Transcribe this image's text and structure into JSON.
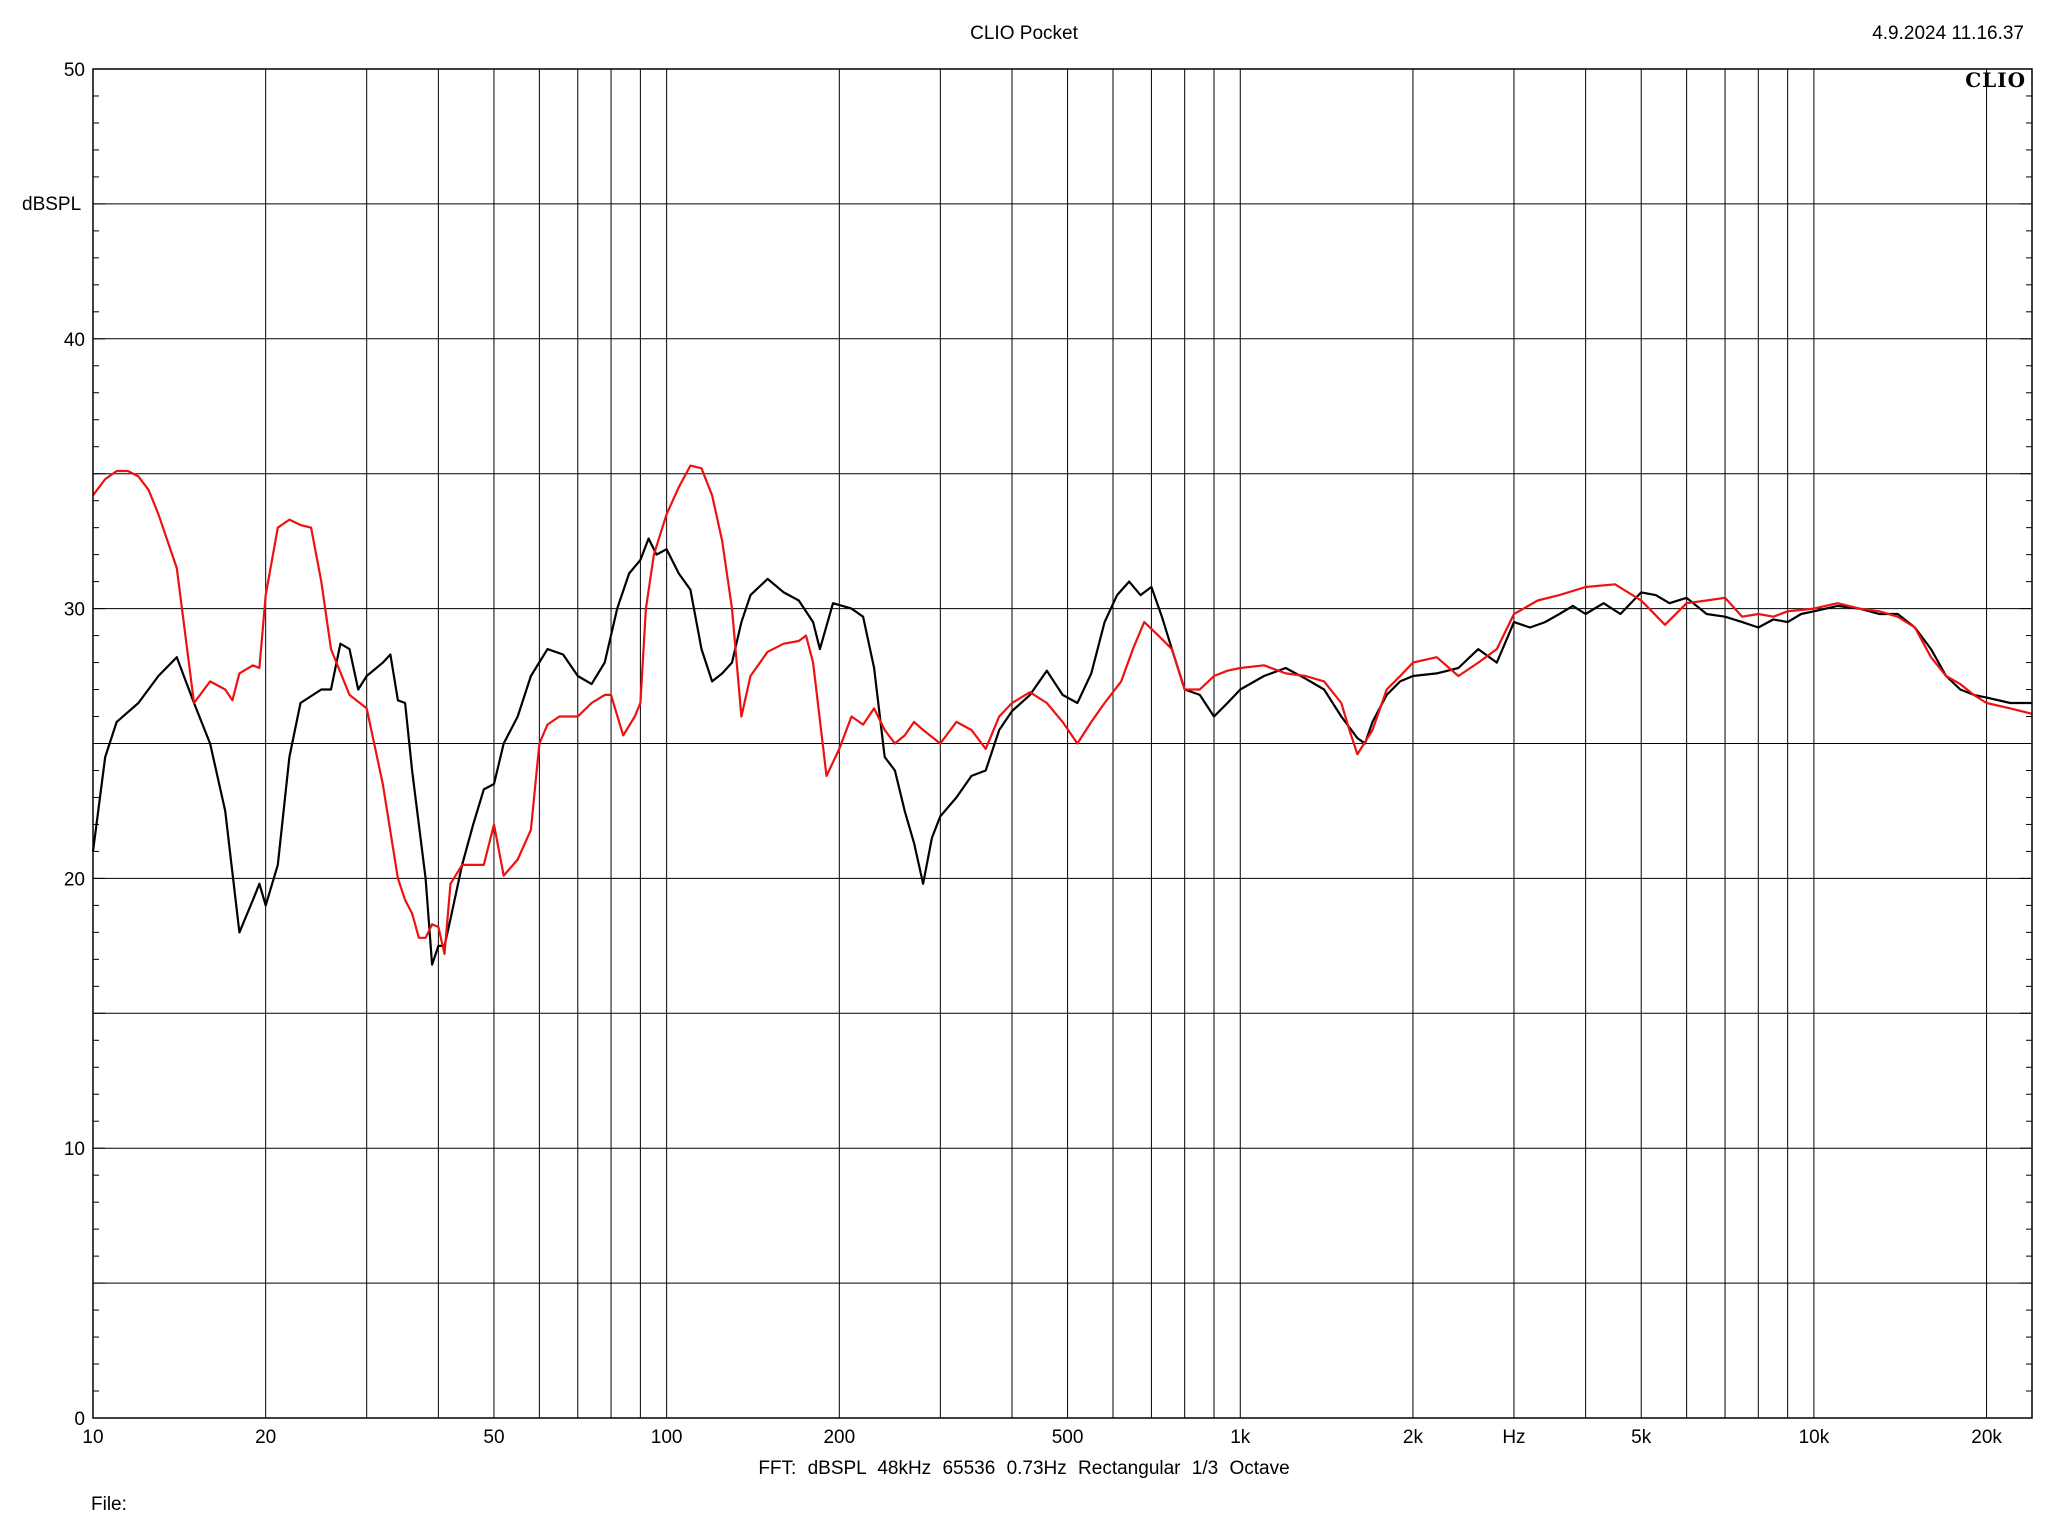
{
  "header": {
    "title": "CLIO Pocket",
    "timestamp": "4.9.2024 11.16.37",
    "brand": "CLIO"
  },
  "footer": {
    "settings": "FFT:  dBSPL  48kHz   65536  0.73Hz  Rectangular  1/3 Octave",
    "file_label": "File:"
  },
  "colors": {
    "series_black": "#000000",
    "series_red": "#ee1111",
    "grid": "#000000"
  },
  "chart_data": {
    "type": "line",
    "title": "CLIO Pocket",
    "ylabel": "dBSPL",
    "xunit_label": "Hz",
    "xscale": "log",
    "xlim": [
      10,
      24000
    ],
    "ylim": [
      0,
      50
    ],
    "grid": true,
    "x_ticks": [
      {
        "value": 10,
        "label": "10"
      },
      {
        "value": 20,
        "label": "20"
      },
      {
        "value": 50,
        "label": "50"
      },
      {
        "value": 100,
        "label": "100"
      },
      {
        "value": 200,
        "label": "200"
      },
      {
        "value": 500,
        "label": "500"
      },
      {
        "value": 1000,
        "label": "1k"
      },
      {
        "value": 2000,
        "label": "2k"
      },
      {
        "value": 5000,
        "label": "5k"
      },
      {
        "value": 10000,
        "label": "10k"
      },
      {
        "value": 20000,
        "label": "20k"
      }
    ],
    "y_ticks": [
      {
        "value": 0,
        "label": "0"
      },
      {
        "value": 10,
        "label": "10"
      },
      {
        "value": 20,
        "label": "20"
      },
      {
        "value": 30,
        "label": "30"
      },
      {
        "value": 40,
        "label": "40"
      },
      {
        "value": 50,
        "label": "50"
      }
    ],
    "series": [
      {
        "color": "#000000",
        "points": [
          [
            10,
            21
          ],
          [
            10.5,
            24.5
          ],
          [
            11,
            25.8
          ],
          [
            12,
            26.5
          ],
          [
            13,
            27.5
          ],
          [
            14,
            28.2
          ],
          [
            15,
            26.5
          ],
          [
            16,
            25
          ],
          [
            17,
            22.5
          ],
          [
            18,
            18
          ],
          [
            19,
            19.2
          ],
          [
            19.5,
            19.8
          ],
          [
            20,
            19
          ],
          [
            21,
            20.5
          ],
          [
            22,
            24.5
          ],
          [
            23,
            26.5
          ],
          [
            25,
            27
          ],
          [
            26,
            27
          ],
          [
            27,
            28.7
          ],
          [
            28,
            28.5
          ],
          [
            29,
            27
          ],
          [
            30,
            27.5
          ],
          [
            32,
            28
          ],
          [
            33,
            28.3
          ],
          [
            34,
            26.6
          ],
          [
            35,
            26.5
          ],
          [
            36,
            24
          ],
          [
            38,
            20
          ],
          [
            39,
            16.8
          ],
          [
            40,
            17.5
          ],
          [
            41,
            17.5
          ],
          [
            42,
            18.5
          ],
          [
            44,
            20.5
          ],
          [
            46,
            22
          ],
          [
            48,
            23.3
          ],
          [
            50,
            23.5
          ],
          [
            52,
            25
          ],
          [
            55,
            26
          ],
          [
            58,
            27.5
          ],
          [
            62,
            28.5
          ],
          [
            66,
            28.3
          ],
          [
            70,
            27.5
          ],
          [
            74,
            27.2
          ],
          [
            78,
            28
          ],
          [
            82,
            30
          ],
          [
            86,
            31.3
          ],
          [
            90,
            31.8
          ],
          [
            93,
            32.6
          ],
          [
            96,
            32
          ],
          [
            100,
            32.2
          ],
          [
            105,
            31.3
          ],
          [
            110,
            30.7
          ],
          [
            115,
            28.5
          ],
          [
            120,
            27.3
          ],
          [
            125,
            27.6
          ],
          [
            130,
            28
          ],
          [
            135,
            29.5
          ],
          [
            140,
            30.5
          ],
          [
            150,
            31.1
          ],
          [
            160,
            30.6
          ],
          [
            170,
            30.3
          ],
          [
            180,
            29.5
          ],
          [
            185,
            28.5
          ],
          [
            195,
            30.2
          ],
          [
            210,
            30
          ],
          [
            220,
            29.7
          ],
          [
            230,
            27.8
          ],
          [
            240,
            24.5
          ],
          [
            250,
            24
          ],
          [
            260,
            22.5
          ],
          [
            270,
            21.3
          ],
          [
            280,
            19.8
          ],
          [
            290,
            21.5
          ],
          [
            300,
            22.3
          ],
          [
            320,
            23
          ],
          [
            340,
            23.8
          ],
          [
            360,
            24
          ],
          [
            380,
            25.5
          ],
          [
            400,
            26.2
          ],
          [
            430,
            26.8
          ],
          [
            460,
            27.7
          ],
          [
            490,
            26.8
          ],
          [
            520,
            26.5
          ],
          [
            550,
            27.6
          ],
          [
            580,
            29.5
          ],
          [
            610,
            30.5
          ],
          [
            640,
            31
          ],
          [
            670,
            30.5
          ],
          [
            700,
            30.8
          ],
          [
            730,
            29.7
          ],
          [
            760,
            28.5
          ],
          [
            800,
            27
          ],
          [
            850,
            26.8
          ],
          [
            900,
            26
          ],
          [
            950,
            26.5
          ],
          [
            1000,
            27
          ],
          [
            1100,
            27.5
          ],
          [
            1200,
            27.8
          ],
          [
            1300,
            27.4
          ],
          [
            1400,
            27
          ],
          [
            1500,
            26
          ],
          [
            1600,
            25.2
          ],
          [
            1650,
            25
          ],
          [
            1700,
            25.8
          ],
          [
            1800,
            26.8
          ],
          [
            1900,
            27.3
          ],
          [
            2000,
            27.5
          ],
          [
            2200,
            27.6
          ],
          [
            2400,
            27.8
          ],
          [
            2600,
            28.5
          ],
          [
            2800,
            28
          ],
          [
            3000,
            29.5
          ],
          [
            3200,
            29.3
          ],
          [
            3400,
            29.5
          ],
          [
            3600,
            29.8
          ],
          [
            3800,
            30.1
          ],
          [
            4000,
            29.8
          ],
          [
            4300,
            30.2
          ],
          [
            4600,
            29.8
          ],
          [
            5000,
            30.6
          ],
          [
            5300,
            30.5
          ],
          [
            5600,
            30.2
          ],
          [
            6000,
            30.4
          ],
          [
            6500,
            29.8
          ],
          [
            7000,
            29.7
          ],
          [
            7500,
            29.5
          ],
          [
            8000,
            29.3
          ],
          [
            8500,
            29.6
          ],
          [
            9000,
            29.5
          ],
          [
            9500,
            29.8
          ],
          [
            10000,
            29.9
          ],
          [
            11000,
            30.1
          ],
          [
            12000,
            30
          ],
          [
            13000,
            29.8
          ],
          [
            14000,
            29.8
          ],
          [
            15000,
            29.3
          ],
          [
            16000,
            28.5
          ],
          [
            17000,
            27.5
          ],
          [
            18000,
            27
          ],
          [
            19000,
            26.8
          ],
          [
            20000,
            26.7
          ],
          [
            22000,
            26.5
          ],
          [
            24000,
            26.5
          ]
        ]
      },
      {
        "color": "#ee1111",
        "points": [
          [
            10,
            34.2
          ],
          [
            10.5,
            34.8
          ],
          [
            11,
            35.1
          ],
          [
            11.5,
            35.1
          ],
          [
            12,
            34.9
          ],
          [
            12.5,
            34.4
          ],
          [
            13,
            33.5
          ],
          [
            14,
            31.5
          ],
          [
            15,
            26.5
          ],
          [
            16,
            27.3
          ],
          [
            17,
            27
          ],
          [
            17.5,
            26.6
          ],
          [
            18,
            27.6
          ],
          [
            19,
            27.9
          ],
          [
            19.5,
            27.8
          ],
          [
            20,
            30.5
          ],
          [
            21,
            33
          ],
          [
            22,
            33.3
          ],
          [
            23,
            33.1
          ],
          [
            24,
            33
          ],
          [
            25,
            31
          ],
          [
            26,
            28.5
          ],
          [
            28,
            26.8
          ],
          [
            30,
            26.3
          ],
          [
            32,
            23.5
          ],
          [
            34,
            20
          ],
          [
            35,
            19.2
          ],
          [
            36,
            18.7
          ],
          [
            37,
            17.8
          ],
          [
            38,
            17.8
          ],
          [
            39,
            18.3
          ],
          [
            40,
            18.2
          ],
          [
            41,
            17.2
          ],
          [
            42,
            19.8
          ],
          [
            44,
            20.5
          ],
          [
            46,
            20.5
          ],
          [
            48,
            20.5
          ],
          [
            50,
            22
          ],
          [
            52,
            20.1
          ],
          [
            55,
            20.7
          ],
          [
            58,
            21.8
          ],
          [
            60,
            25
          ],
          [
            62,
            25.7
          ],
          [
            65,
            26
          ],
          [
            70,
            26
          ],
          [
            74,
            26.5
          ],
          [
            78,
            26.8
          ],
          [
            80,
            26.8
          ],
          [
            84,
            25.3
          ],
          [
            88,
            26
          ],
          [
            90,
            26.5
          ],
          [
            92,
            30
          ],
          [
            95,
            32
          ],
          [
            100,
            33.5
          ],
          [
            105,
            34.5
          ],
          [
            110,
            35.3
          ],
          [
            115,
            35.2
          ],
          [
            120,
            34.2
          ],
          [
            125,
            32.5
          ],
          [
            130,
            30
          ],
          [
            135,
            26
          ],
          [
            140,
            27.5
          ],
          [
            150,
            28.4
          ],
          [
            160,
            28.7
          ],
          [
            170,
            28.8
          ],
          [
            175,
            29
          ],
          [
            180,
            28
          ],
          [
            190,
            23.8
          ],
          [
            200,
            24.8
          ],
          [
            210,
            26
          ],
          [
            220,
            25.7
          ],
          [
            230,
            26.3
          ],
          [
            240,
            25.5
          ],
          [
            250,
            25
          ],
          [
            260,
            25.3
          ],
          [
            270,
            25.8
          ],
          [
            280,
            25.5
          ],
          [
            300,
            25
          ],
          [
            320,
            25.8
          ],
          [
            340,
            25.5
          ],
          [
            360,
            24.8
          ],
          [
            380,
            26
          ],
          [
            400,
            26.5
          ],
          [
            430,
            26.9
          ],
          [
            460,
            26.5
          ],
          [
            490,
            25.8
          ],
          [
            520,
            25
          ],
          [
            550,
            25.8
          ],
          [
            580,
            26.5
          ],
          [
            620,
            27.3
          ],
          [
            650,
            28.5
          ],
          [
            680,
            29.5
          ],
          [
            720,
            29
          ],
          [
            760,
            28.5
          ],
          [
            800,
            27
          ],
          [
            850,
            27
          ],
          [
            900,
            27.5
          ],
          [
            950,
            27.7
          ],
          [
            1000,
            27.8
          ],
          [
            1100,
            27.9
          ],
          [
            1200,
            27.6
          ],
          [
            1300,
            27.5
          ],
          [
            1400,
            27.3
          ],
          [
            1500,
            26.5
          ],
          [
            1550,
            25.5
          ],
          [
            1600,
            24.6
          ],
          [
            1700,
            25.5
          ],
          [
            1800,
            27
          ],
          [
            1900,
            27.5
          ],
          [
            2000,
            28
          ],
          [
            2200,
            28.2
          ],
          [
            2400,
            27.5
          ],
          [
            2600,
            28
          ],
          [
            2800,
            28.5
          ],
          [
            3000,
            29.8
          ],
          [
            3300,
            30.3
          ],
          [
            3600,
            30.5
          ],
          [
            4000,
            30.8
          ],
          [
            4500,
            30.9
          ],
          [
            5000,
            30.3
          ],
          [
            5500,
            29.4
          ],
          [
            6000,
            30.2
          ],
          [
            6500,
            30.3
          ],
          [
            7000,
            30.4
          ],
          [
            7500,
            29.7
          ],
          [
            8000,
            29.8
          ],
          [
            8500,
            29.7
          ],
          [
            9000,
            29.9
          ],
          [
            10000,
            30
          ],
          [
            11000,
            30.2
          ],
          [
            12000,
            30
          ],
          [
            13000,
            29.9
          ],
          [
            14000,
            29.7
          ],
          [
            15000,
            29.3
          ],
          [
            16000,
            28.2
          ],
          [
            17000,
            27.5
          ],
          [
            18000,
            27.2
          ],
          [
            19000,
            26.8
          ],
          [
            20000,
            26.5
          ],
          [
            22000,
            26.3
          ],
          [
            24000,
            26.1
          ]
        ]
      }
    ]
  }
}
